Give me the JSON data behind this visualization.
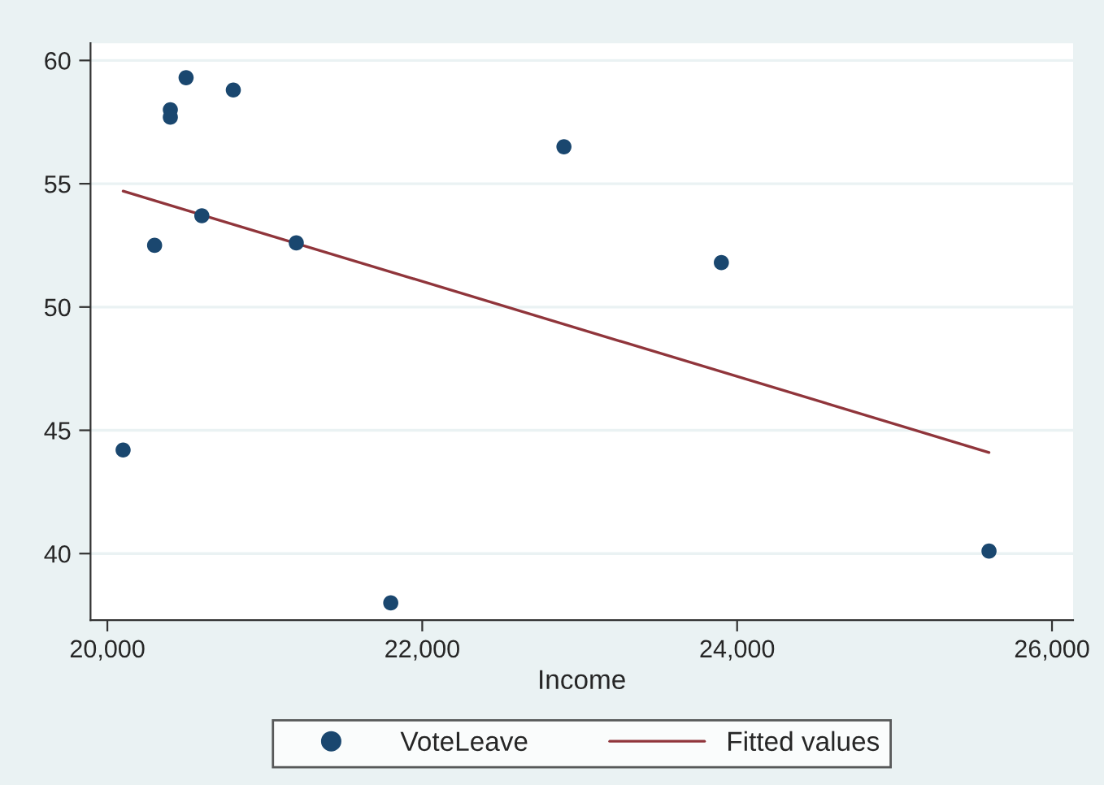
{
  "chart_data": {
    "type": "scatter",
    "xlabel": "Income",
    "xlim": [
      19893,
      26134
    ],
    "ylim": [
      37.3,
      60.7
    ],
    "xticks": [
      {
        "value": 20000,
        "label": "20,000"
      },
      {
        "value": 22000,
        "label": "22,000"
      },
      {
        "value": 24000,
        "label": "24,000"
      },
      {
        "value": 26000,
        "label": "26,000"
      }
    ],
    "yticks": [
      40,
      45,
      50,
      55,
      60
    ],
    "grid": "y",
    "legend": "bottom",
    "series": [
      {
        "name": "VoteLeave",
        "marker": "circle",
        "color": "#1a476f",
        "x": [
          20100,
          20300,
          20400,
          20400,
          20500,
          20600,
          20800,
          21200,
          21800,
          22900,
          23900,
          25600
        ],
        "values": [
          44.2,
          52.5,
          58.0,
          57.7,
          59.3,
          53.7,
          58.8,
          52.6,
          38.0,
          56.5,
          51.8,
          40.1
        ]
      },
      {
        "name": "Fitted values",
        "type": "line",
        "marker": "none",
        "color": "#90353b",
        "x": [
          20100,
          25600
        ],
        "values": [
          54.7,
          44.1
        ]
      }
    ]
  }
}
